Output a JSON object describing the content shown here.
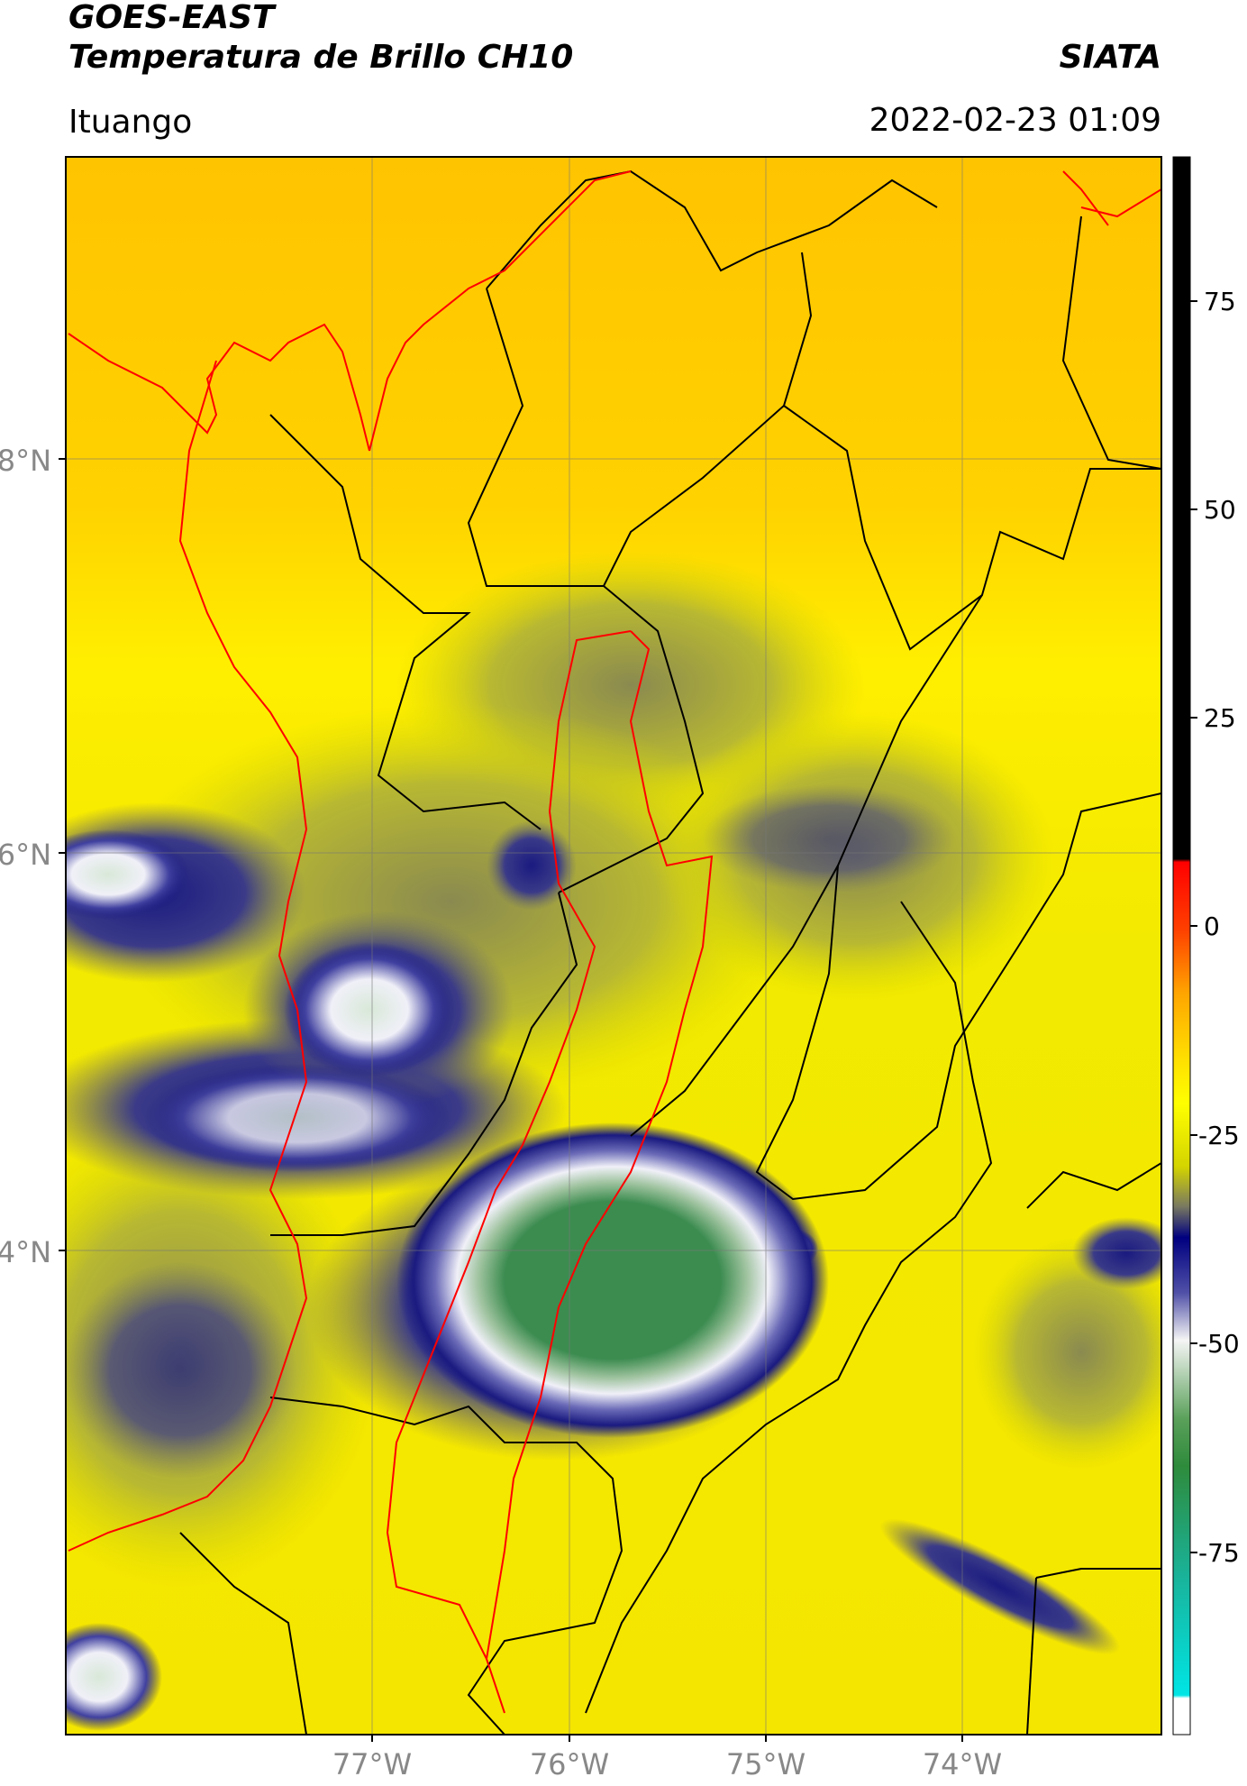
{
  "header": {
    "satellite": "GOES-EAST",
    "product": "Temperatura de Brillo CH10",
    "brand": "SIATA",
    "location": "Ituango",
    "datetime": "2022-02-23 01:09"
  },
  "map": {
    "lat_labels": [
      "8°N",
      "6°N",
      "4°N"
    ],
    "lon_labels": [
      "77°W",
      "76°W",
      "75°W",
      "74°W"
    ]
  },
  "colorbar": {
    "tick_labels": [
      "75",
      "50",
      "25",
      "0",
      "-25",
      "-50",
      "-75"
    ],
    "colors": {
      "top_black": "#000000",
      "red": "#ff0000",
      "orange": "#ffa500",
      "yellow": "#ffff00",
      "olive": "#c8c800",
      "navy": "#000080",
      "white": "#f5f5f5",
      "green": "#2e8b3c",
      "teal": "#19b39a",
      "cyan": "#00e5e5"
    }
  },
  "colors": {
    "background_yellow": "#f5ec00",
    "orange_band": "#ffc400",
    "cloud_olive": "#b8b832",
    "cloud_navy": "#1a1a80",
    "cloud_white": "#e8e8f5",
    "cloud_green": "#3c8c50",
    "boundary_black": "#000000",
    "boundary_red": "#ff0000"
  }
}
